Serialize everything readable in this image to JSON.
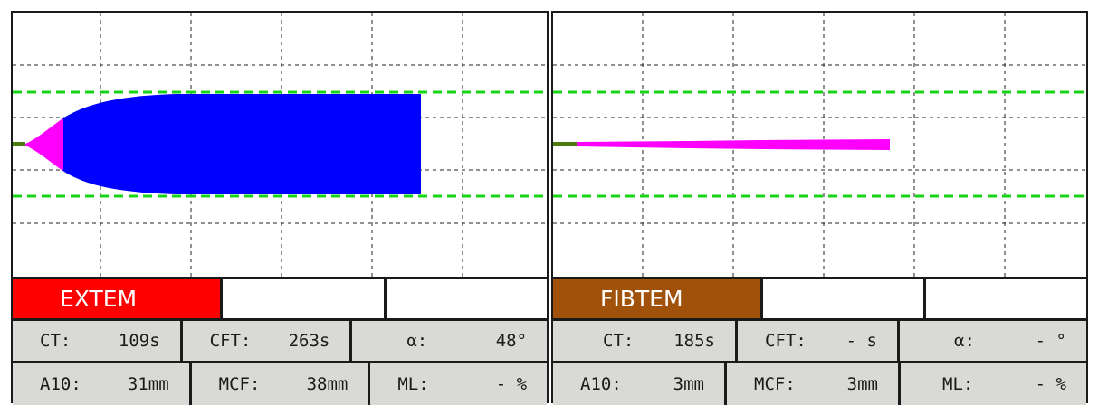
{
  "colors": {
    "grid": "#222222",
    "limit_line": "#18d418",
    "baseline": "#4a7a10",
    "extem_fill": "#0000ff",
    "extem_start": "#ff00ff",
    "fibtem_fill": "#ff00ff",
    "extem_label_bg": "#ff0000",
    "fibtem_label_bg": "#a0520a",
    "param_bg": "#d9d9d6"
  },
  "panels": [
    {
      "id": "extem",
      "label": "EXTEM",
      "values": [
        {
          "name": "CT:",
          "value": "109s"
        },
        {
          "name": "CFT:",
          "value": "263s"
        },
        {
          "name": "α:",
          "value": "48°"
        },
        {
          "name": "A10:",
          "value": "31mm"
        },
        {
          "name": "MCF:",
          "value": "38mm"
        },
        {
          "name": "ML:",
          "value": "- %"
        }
      ]
    },
    {
      "id": "fibtem",
      "label": "FIBTEM",
      "values": [
        {
          "name": "CT:",
          "value": "185s"
        },
        {
          "name": "CFT:",
          "value": "- s"
        },
        {
          "name": "α:",
          "value": "- °"
        },
        {
          "name": "A10:",
          "value": "3mm"
        },
        {
          "name": "MCF:",
          "value": "3mm"
        },
        {
          "name": "ML:",
          "value": "- %"
        }
      ]
    }
  ]
}
